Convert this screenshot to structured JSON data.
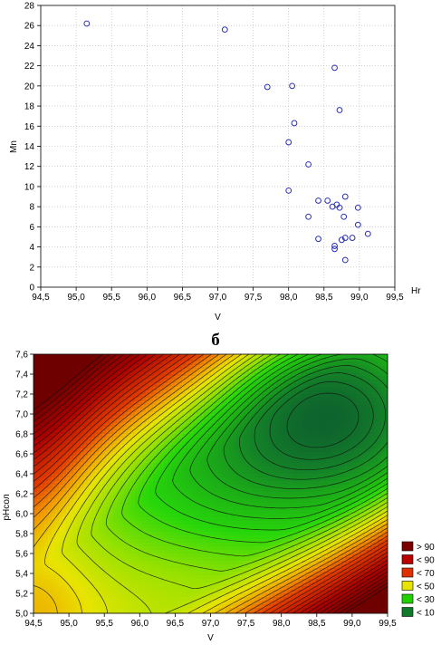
{
  "chart_data": [
    {
      "type": "scatter",
      "xlabel": "V",
      "ylabel": "Mn",
      "annotation": "Hr",
      "xlim": [
        94.5,
        99.5
      ],
      "ylim": [
        0,
        28
      ],
      "xticks": [
        "94,5",
        "95,0",
        "95,5",
        "96,0",
        "96,5",
        "97,0",
        "97,5",
        "98,0",
        "98,5",
        "99,0",
        "99,5"
      ],
      "yticks": [
        "0",
        "2",
        "4",
        "6",
        "8",
        "10",
        "12",
        "14",
        "16",
        "18",
        "20",
        "22",
        "24",
        "26",
        "28"
      ],
      "grid": true,
      "points": [
        {
          "x": 95.15,
          "y": 26.2
        },
        {
          "x": 97.1,
          "y": 25.6
        },
        {
          "x": 97.7,
          "y": 19.9
        },
        {
          "x": 98.05,
          "y": 20.0
        },
        {
          "x": 98.65,
          "y": 21.8
        },
        {
          "x": 98.72,
          "y": 17.6
        },
        {
          "x": 98.08,
          "y": 16.3
        },
        {
          "x": 98.0,
          "y": 14.4
        },
        {
          "x": 98.28,
          "y": 12.2
        },
        {
          "x": 98.0,
          "y": 9.6
        },
        {
          "x": 98.42,
          "y": 8.6
        },
        {
          "x": 98.55,
          "y": 8.6
        },
        {
          "x": 98.62,
          "y": 8.0
        },
        {
          "x": 98.68,
          "y": 8.2
        },
        {
          "x": 98.72,
          "y": 7.9
        },
        {
          "x": 98.8,
          "y": 9.0
        },
        {
          "x": 98.98,
          "y": 7.9
        },
        {
          "x": 98.28,
          "y": 7.0
        },
        {
          "x": 98.78,
          "y": 7.0
        },
        {
          "x": 98.98,
          "y": 6.2
        },
        {
          "x": 99.12,
          "y": 5.3
        },
        {
          "x": 98.42,
          "y": 4.8
        },
        {
          "x": 98.75,
          "y": 4.7
        },
        {
          "x": 98.8,
          "y": 4.9
        },
        {
          "x": 98.9,
          "y": 4.9
        },
        {
          "x": 98.65,
          "y": 4.1
        },
        {
          "x": 98.65,
          "y": 3.8
        },
        {
          "x": 98.8,
          "y": 2.7
        }
      ]
    },
    {
      "type": "contour",
      "panel_label": "б",
      "xlabel": "V",
      "ylabel": "pHсол",
      "xlim": [
        94.5,
        99.5
      ],
      "ylim": [
        5.0,
        7.6
      ],
      "xticks": [
        "94,5",
        "95,0",
        "95,5",
        "96,0",
        "96,5",
        "97,0",
        "97,5",
        "98,0",
        "98,5",
        "99,0",
        "99,5"
      ],
      "yticks": [
        "5,0",
        "5,2",
        "5,4",
        "5,6",
        "5,8",
        "6,0",
        "6,2",
        "6,4",
        "6,6",
        "6,8",
        "7,0",
        "7,2",
        "7,4",
        "7,6"
      ],
      "legend": [
        {
          "label": "> 90",
          "color": "#7a0000"
        },
        {
          "label": "< 90",
          "color": "#b80000"
        },
        {
          "label": "< 70",
          "color": "#e03000"
        },
        {
          "label": "< 50",
          "color": "#e8e400"
        },
        {
          "label": "< 30",
          "color": "#22d000"
        },
        {
          "label": "< 10",
          "color": "#107a2a"
        }
      ]
    }
  ]
}
